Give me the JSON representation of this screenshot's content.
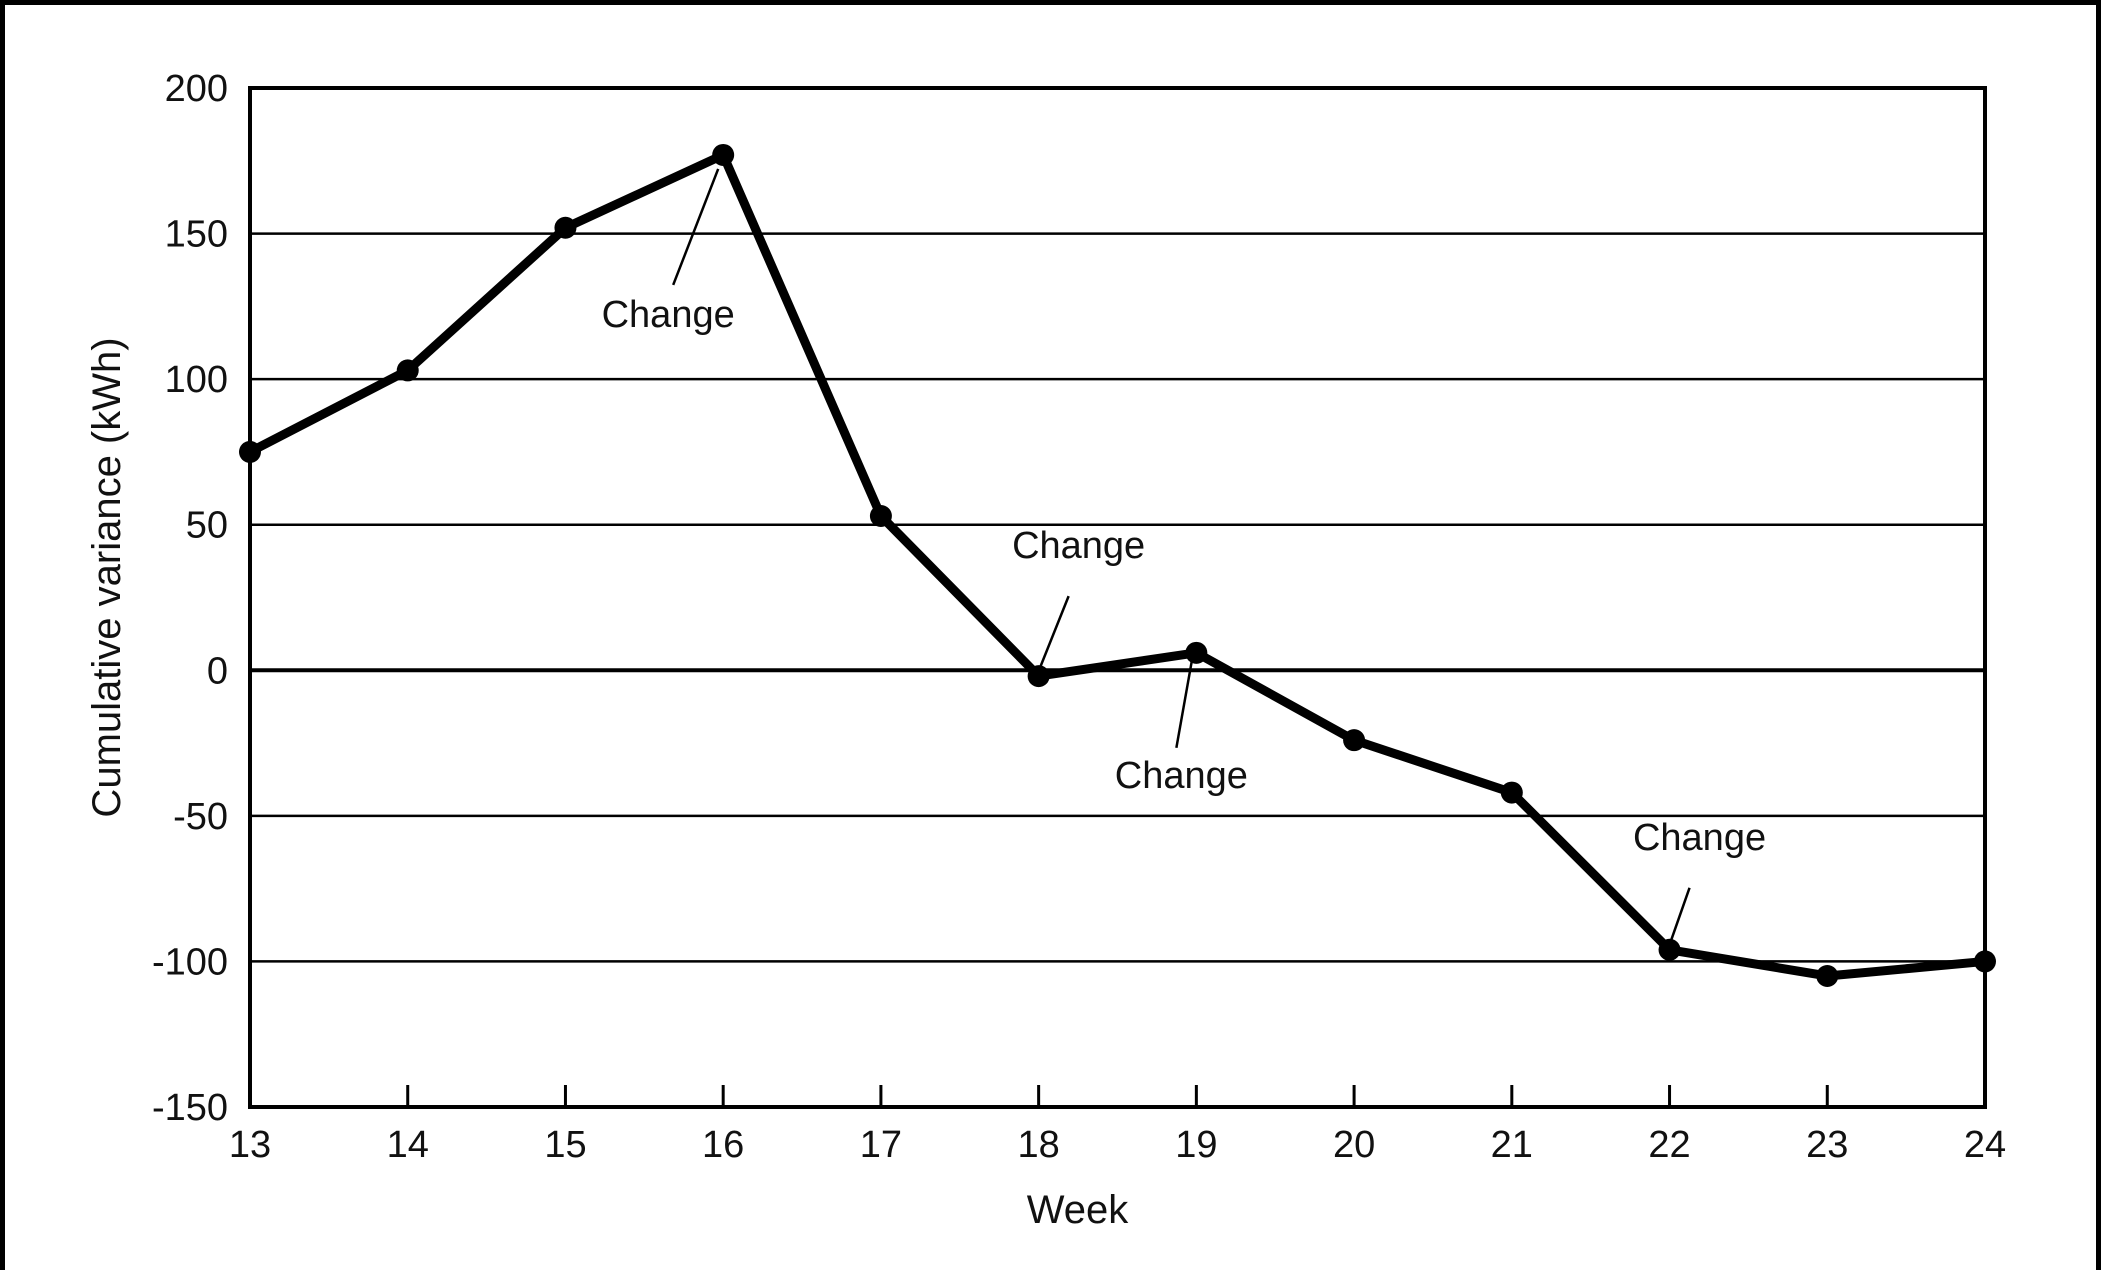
{
  "chart_data": {
    "type": "line",
    "title": "",
    "xlabel": "Week",
    "ylabel": "Cumulative variance (kWh)",
    "x": [
      13,
      14,
      15,
      16,
      17,
      18,
      19,
      20,
      21,
      22,
      23,
      24
    ],
    "series": [
      {
        "values": [
          75,
          103,
          152,
          177,
          53,
          -2,
          6,
          -24,
          -42,
          -96,
          -105,
          -100
        ]
      }
    ],
    "xlim": [
      13,
      24
    ],
    "ylim": [
      -150,
      200
    ],
    "x_ticks": [
      "13",
      "14",
      "15",
      "16",
      "17",
      "18",
      "19",
      "20",
      "21",
      "22",
      "23",
      "24"
    ],
    "y_ticks": [
      "200",
      "150",
      "100",
      "50",
      "0",
      "-50",
      "-100",
      "-150"
    ],
    "y_tick_values": [
      200,
      150,
      100,
      50,
      0,
      -50,
      -100,
      -150
    ],
    "grid": "horizontal",
    "legend": "none",
    "annotations": [
      {
        "text": "Change",
        "week": 16,
        "value": 177
      },
      {
        "text": "Change",
        "week": 18,
        "value": -2
      },
      {
        "text": "Change",
        "week": 19,
        "value": 6
      },
      {
        "text": "Change",
        "week": 22,
        "value": -96
      }
    ],
    "colors": {
      "line": "#000000",
      "grid": "#000000",
      "background": "#ffffff"
    }
  }
}
